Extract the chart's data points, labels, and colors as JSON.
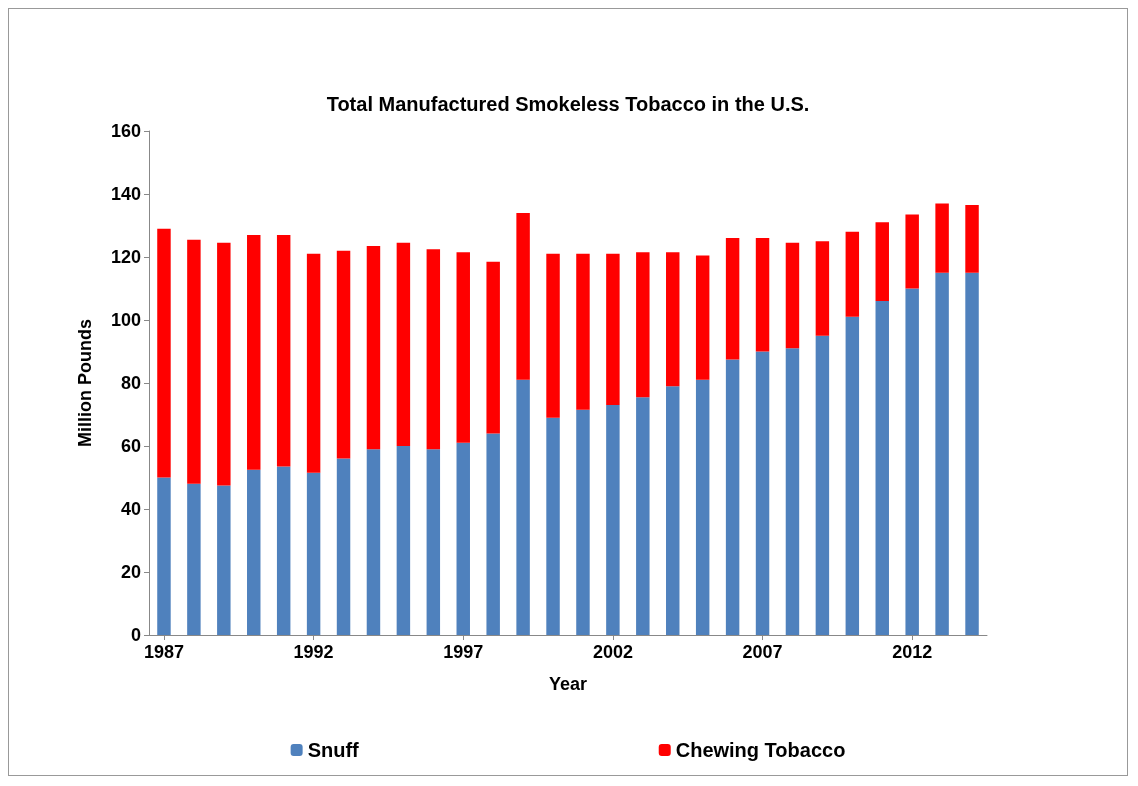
{
  "chart_data": {
    "type": "bar",
    "title": "Total Manufactured Smokeless Tobacco in the U.S.",
    "xlabel": "Year",
    "ylabel": "Million Pounds",
    "categories": [
      "1987",
      null,
      null,
      null,
      null,
      "1992",
      null,
      null,
      null,
      null,
      "1997",
      null,
      null,
      null,
      null,
      "2002",
      null,
      null,
      null,
      null,
      "2007",
      null,
      null,
      null,
      null,
      "2012",
      null,
      null
    ],
    "series": [
      {
        "name": "Snuff",
        "color": "#4f81bd",
        "values": [
          50,
          48,
          47.5,
          52.5,
          53.5,
          51.5,
          56,
          59,
          60,
          59,
          61,
          64,
          81,
          69,
          71.5,
          73,
          75.5,
          79,
          81,
          87.5,
          90,
          91,
          95,
          101,
          106,
          110,
          115,
          115
        ]
      },
      {
        "name": "Chewing Tobacco",
        "color": "#ff0000",
        "values": [
          79,
          77.5,
          77,
          74.5,
          73.5,
          69.5,
          66,
          64.5,
          64.5,
          63.5,
          60.5,
          54.5,
          53,
          52,
          49.5,
          48,
          46,
          42.5,
          39.5,
          38.5,
          36,
          33.5,
          30,
          27,
          25,
          23.5,
          22,
          21.5
        ]
      }
    ],
    "stacked": true,
    "ylim": [
      0,
      160
    ],
    "yticks": [
      0,
      20,
      40,
      60,
      80,
      100,
      120,
      140,
      160
    ],
    "grid": false,
    "legend": "bottom"
  }
}
